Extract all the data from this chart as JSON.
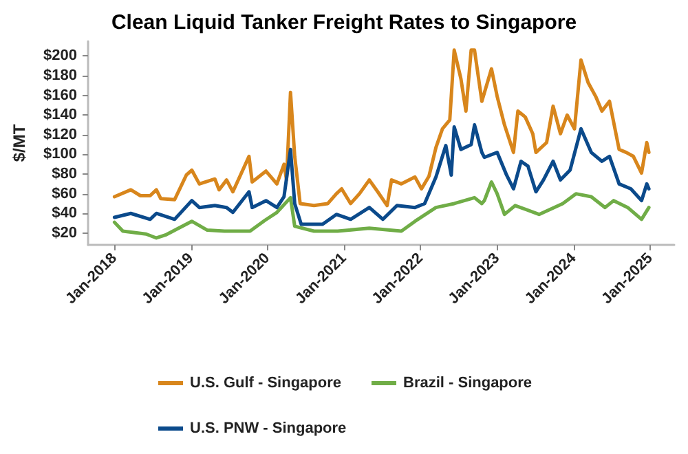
{
  "chart_data": {
    "type": "line",
    "title": "Clean Liquid Tanker Freight Rates to Singapore",
    "ylabel": "$/MT",
    "xlim": [
      "2017-08-28",
      "2025-04-25"
    ],
    "xticks": [
      {
        "value": "2018-01-01",
        "label": "Jan-2018"
      },
      {
        "value": "2019-01-01",
        "label": "Jan-2019"
      },
      {
        "value": "2020-01-01",
        "label": "Jan-2020"
      },
      {
        "value": "2021-01-01",
        "label": "Jan-2021"
      },
      {
        "value": "2022-01-01",
        "label": "Jan-2022"
      },
      {
        "value": "2023-01-01",
        "label": "Jan-2023"
      },
      {
        "value": "2024-01-01",
        "label": "Jan-2024"
      },
      {
        "value": "2025-01-01",
        "label": "Jan-2025"
      }
    ],
    "ylim": [
      8,
      215
    ],
    "yticks": [
      {
        "value": 20,
        "label": "$20"
      },
      {
        "value": 40,
        "label": "$40"
      },
      {
        "value": 60,
        "label": "$60"
      },
      {
        "value": 80,
        "label": "$80"
      },
      {
        "value": 100,
        "label": "$100"
      },
      {
        "value": 120,
        "label": "$120"
      },
      {
        "value": 140,
        "label": "$140"
      },
      {
        "value": 160,
        "label": "$160"
      },
      {
        "value": 180,
        "label": "$180"
      },
      {
        "value": 200,
        "label": "$200"
      }
    ],
    "grid": false,
    "legend": "bottom",
    "marker": "none",
    "line_style": "solid",
    "series": [
      {
        "name": "U.S. Gulf - Singapore",
        "color": "#d8861c",
        "x": [
          "2018-01-01",
          "2018-03-20",
          "2018-05-05",
          "2018-06-20",
          "2018-07-20",
          "2018-08-10",
          "2018-10-15",
          "2018-12-10",
          "2019-01-05",
          "2019-02-10",
          "2019-04-25",
          "2019-05-15",
          "2019-06-20",
          "2019-07-20",
          "2019-10-05",
          "2019-10-20",
          "2019-12-25",
          "2020-02-15",
          "2020-03-20",
          "2020-04-01",
          "2020-04-20",
          "2020-05-10",
          "2020-06-05",
          "2020-08-10",
          "2020-10-15",
          "2020-11-25",
          "2020-12-20",
          "2021-02-01",
          "2021-03-15",
          "2021-05-01",
          "2021-06-10",
          "2021-07-25",
          "2021-08-15",
          "2021-10-01",
          "2021-12-05",
          "2022-01-05",
          "2022-02-10",
          "2022-03-15",
          "2022-04-15",
          "2022-05-20",
          "2022-06-10",
          "2022-07-12",
          "2022-08-05",
          "2022-08-30",
          "2022-09-15",
          "2022-10-20",
          "2022-12-05",
          "2023-01-01",
          "2023-02-05",
          "2023-03-20",
          "2023-04-10",
          "2023-05-15",
          "2023-06-20",
          "2023-07-05",
          "2023-08-25",
          "2023-09-25",
          "2023-10-30",
          "2023-12-01",
          "2024-01-05",
          "2024-02-05",
          "2024-03-10",
          "2024-04-15",
          "2024-05-15",
          "2024-06-20",
          "2024-08-05",
          "2024-09-08",
          "2024-10-12",
          "2024-11-20",
          "2024-12-15",
          "2024-12-25"
        ],
        "values": [
          57,
          64,
          58,
          58,
          64,
          55,
          54,
          79,
          84,
          70,
          75,
          64,
          74,
          62,
          98,
          72,
          83,
          70,
          90,
          74,
          163,
          98,
          50,
          48,
          50,
          60,
          65,
          50,
          60,
          74,
          62,
          48,
          74,
          70,
          77,
          65,
          78,
          107,
          126,
          135,
          206,
          177,
          144,
          206,
          206,
          154,
          187,
          159,
          130,
          102,
          144,
          138,
          121,
          102,
          112,
          149,
          121,
          140,
          126,
          196,
          173,
          159,
          144,
          154,
          105,
          102,
          98,
          81,
          112,
          102
        ]
      },
      {
        "name": "Brazil - Singapore",
        "color": "#70ad47",
        "x": [
          "2018-01-01",
          "2018-02-10",
          "2018-06-01",
          "2018-07-20",
          "2018-09-01",
          "2019-01-05",
          "2019-03-20",
          "2019-06-10",
          "2019-07-30",
          "2019-10-10",
          "2019-12-20",
          "2020-02-15",
          "2020-04-20",
          "2020-05-10",
          "2020-08-10",
          "2020-12-01",
          "2021-05-01",
          "2021-10-01",
          "2021-12-05",
          "2022-03-15",
          "2022-06-10",
          "2022-09-15",
          "2022-10-20",
          "2022-11-01",
          "2022-12-05",
          "2023-01-01",
          "2023-02-05",
          "2023-03-28",
          "2023-07-20",
          "2023-11-10",
          "2024-01-12",
          "2024-03-25",
          "2024-05-30",
          "2024-07-10",
          "2024-09-15",
          "2024-11-20",
          "2024-12-25"
        ],
        "values": [
          31,
          22,
          19,
          15,
          18,
          32,
          23,
          22,
          22,
          22,
          33,
          41,
          56,
          27,
          22,
          22,
          25,
          22,
          32,
          46,
          50,
          56,
          50,
          53,
          72,
          60,
          39,
          48,
          39,
          50,
          60,
          57,
          46,
          53,
          46,
          34,
          46
        ]
      },
      {
        "name": "U.S. PNW - Singapore",
        "color": "#0b4a8b",
        "x": [
          "2018-01-01",
          "2018-03-20",
          "2018-06-20",
          "2018-07-20",
          "2018-10-15",
          "2019-01-05",
          "2019-02-10",
          "2019-04-25",
          "2019-06-20",
          "2019-07-20",
          "2019-10-05",
          "2019-10-20",
          "2019-12-25",
          "2020-02-15",
          "2020-03-20",
          "2020-04-20",
          "2020-05-10",
          "2020-06-10",
          "2020-09-20",
          "2020-11-25",
          "2021-02-01",
          "2021-05-01",
          "2021-07-05",
          "2021-09-10",
          "2021-12-05",
          "2022-01-20",
          "2022-03-15",
          "2022-05-01",
          "2022-05-27",
          "2022-06-10",
          "2022-07-12",
          "2022-08-30",
          "2022-09-15",
          "2022-10-20",
          "2022-11-01",
          "2023-01-01",
          "2023-02-15",
          "2023-03-20",
          "2023-04-25",
          "2023-05-28",
          "2023-07-05",
          "2023-08-10",
          "2023-09-25",
          "2023-10-30",
          "2023-12-15",
          "2024-02-05",
          "2024-03-25",
          "2024-05-15",
          "2024-06-20",
          "2024-08-05",
          "2024-09-30",
          "2024-11-20",
          "2024-12-15",
          "2024-12-25"
        ],
        "values": [
          36,
          40,
          34,
          40,
          34,
          53,
          46,
          48,
          46,
          41,
          62,
          46,
          53,
          46,
          57,
          105,
          50,
          29,
          29,
          39,
          34,
          46,
          34,
          48,
          46,
          50,
          77,
          109,
          79,
          128,
          105,
          110,
          130,
          102,
          97,
          102,
          79,
          65,
          93,
          88,
          62,
          74,
          93,
          74,
          84,
          126,
          102,
          93,
          98,
          70,
          65,
          53,
          70,
          65
        ]
      }
    ]
  }
}
